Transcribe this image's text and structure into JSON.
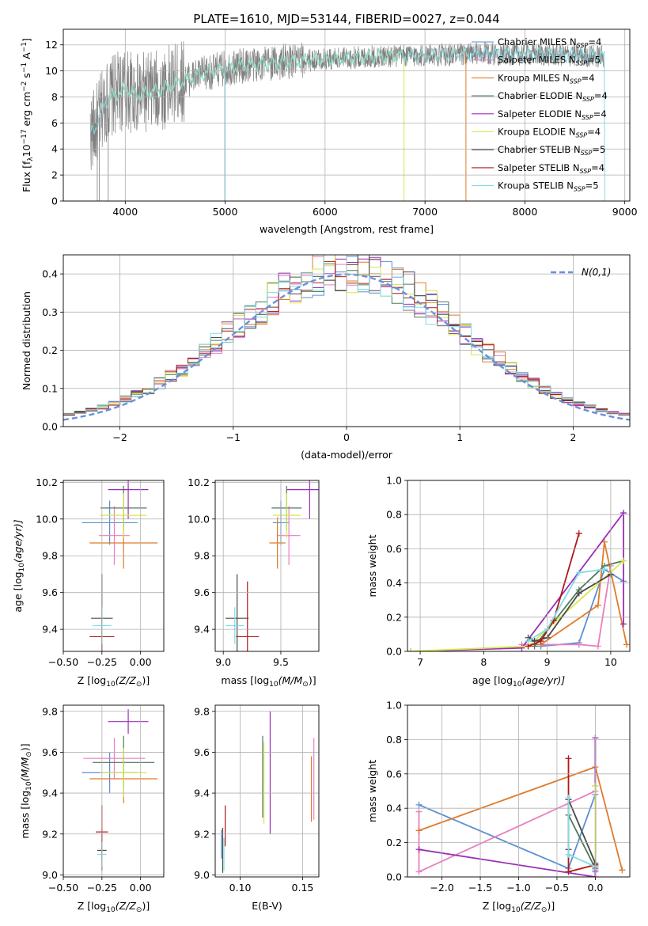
{
  "title": "PLATE=1610, MJD=53144, FIBERID=0027, z=0.044",
  "colors": {
    "Chabrier MILES": "#5b8fd4",
    "Salpeter MILES": "#e97fc0",
    "Kroupa MILES": "#e07b2a",
    "Chabrier ELODIE": "#4c7a5b",
    "Salpeter ELODIE": "#9b2fb5",
    "Kroupa ELODIE": "#d6e84a",
    "Chabrier STELIB": "#4a4a4a",
    "Salpeter STELIB": "#b01818",
    "Kroupa STELIB": "#7fdde6",
    "spectrum": "#808080",
    "normal_curve": "#6a8fdc"
  },
  "chart_data": [
    {
      "id": "spectrum",
      "type": "line",
      "xlabel": "wavelength [Angstrom, rest frame]",
      "ylabel_prefix": "Flux [f",
      "ylabel_rest": "10",
      "ylabel_units": " erg cm",
      "xlim": [
        3380,
        9050
      ],
      "ylim": [
        0,
        13.2
      ],
      "xticks": [
        4000,
        5000,
        6000,
        7000,
        8000,
        9000
      ],
      "yticks": [
        0,
        2,
        4,
        6,
        8,
        10,
        12
      ],
      "legend": [
        {
          "model": "Chabrier MILES",
          "n": "4"
        },
        {
          "model": "Salpeter MILES",
          "n": "5"
        },
        {
          "model": "Kroupa MILES",
          "n": "4"
        },
        {
          "model": "Chabrier ELODIE",
          "n": "4"
        },
        {
          "model": "Salpeter ELODIE",
          "n": "4"
        },
        {
          "model": "Kroupa ELODIE",
          "n": "4"
        },
        {
          "model": "Chabrier STELIB",
          "n": "5"
        },
        {
          "model": "Salpeter STELIB",
          "n": "4"
        },
        {
          "model": "Kroupa STELIB",
          "n": "5"
        }
      ],
      "data_range": [
        3650,
        8800
      ],
      "continuum": [
        [
          3650,
          5.2
        ],
        [
          3700,
          5.6
        ],
        [
          3800,
          7.6
        ],
        [
          3900,
          8.2
        ],
        [
          4000,
          8.6
        ],
        [
          4100,
          8.2
        ],
        [
          4300,
          8.4
        ],
        [
          4500,
          9.0
        ],
        [
          4700,
          9.6
        ],
        [
          5000,
          10.2
        ],
        [
          5300,
          10.5
        ],
        [
          5600,
          10.7
        ],
        [
          6000,
          10.9
        ],
        [
          6500,
          11.1
        ],
        [
          7000,
          11.2
        ],
        [
          7500,
          11.3
        ],
        [
          8000,
          11.3
        ],
        [
          8500,
          11.2
        ],
        [
          8800,
          11.1
        ]
      ],
      "model_cutoffs": [
        {
          "model": "Kroupa MILES",
          "start": 3650,
          "end": 7410
        },
        {
          "model": "Kroupa ELODIE",
          "start": 3830,
          "end": 6790
        },
        {
          "model": "Kroupa STELIB",
          "start": 3650,
          "end": 8800
        }
      ]
    },
    {
      "id": "residuals",
      "type": "step-histogram",
      "xlabel": "(data-model)/error",
      "ylabel": "Normed distribution",
      "xlim": [
        -2.5,
        2.5
      ],
      "ylim": [
        0,
        0.45
      ],
      "xticks": [
        -2,
        -1,
        0,
        1,
        2
      ],
      "yticks": [
        0.0,
        0.1,
        0.2,
        0.3,
        0.4
      ],
      "legend_label": "N(0,1)",
      "bin_width": 0.1
    },
    {
      "id": "age-vs-Z",
      "type": "errorbar",
      "xlabel_prefix": "Z [log",
      "xlabel_mid": "(Z/Z",
      "xlabel_end": ")]",
      "ylabel_prefix": "age  [log",
      "ylabel_end": "(age/yr)]",
      "xlim": [
        -0.5,
        0.15
      ],
      "ylim": [
        9.28,
        10.21
      ],
      "xticks": [
        -0.5,
        -0.25,
        0.0
      ],
      "yticks": [
        9.4,
        9.6,
        9.8,
        10.0,
        10.2
      ],
      "points": [
        {
          "model": "Chabrier MILES",
          "x": -0.2,
          "xerr": 0.18,
          "y": 9.98,
          "yerr": 0.12
        },
        {
          "model": "Salpeter MILES",
          "x": -0.17,
          "xerr": 0.1,
          "y": 9.91,
          "yerr": 0.16
        },
        {
          "model": "Kroupa MILES",
          "x": -0.11,
          "xerr": 0.22,
          "y": 9.87,
          "yerr": 0.14
        },
        {
          "model": "Chabrier ELODIE",
          "x": -0.11,
          "xerr": 0.15,
          "y": 10.06,
          "yerr": 0.12
        },
        {
          "model": "Salpeter ELODIE",
          "x": -0.08,
          "xerr": 0.13,
          "y": 10.16,
          "yerr": 0.16
        },
        {
          "model": "Kroupa ELODIE",
          "x": -0.11,
          "xerr": 0.15,
          "y": 10.02,
          "yerr": 0.12
        },
        {
          "model": "Chabrier STELIB",
          "x": -0.25,
          "xerr": 0.07,
          "y": 9.46,
          "yerr": 0.24
        },
        {
          "model": "Salpeter STELIB",
          "x": -0.25,
          "xerr": 0.08,
          "y": 9.36,
          "yerr": 0.1
        },
        {
          "model": "Kroupa STELIB",
          "x": -0.25,
          "xerr": 0.06,
          "y": 9.42,
          "yerr": 0.1
        }
      ]
    },
    {
      "id": "age-vs-mass",
      "type": "errorbar",
      "xlabel_prefix": "mass [log",
      "xlabel_mid": "(M/M",
      "xlabel_end": ")]",
      "xlim": [
        8.93,
        9.83
      ],
      "ylim": [
        9.28,
        10.21
      ],
      "xticks": [
        9.0,
        9.5
      ],
      "yticks": [
        9.4,
        9.6,
        9.8,
        10.0,
        10.2
      ],
      "points": [
        {
          "model": "Chabrier MILES",
          "x": 9.5,
          "xerr": 0.07,
          "y": 9.98,
          "yerr": 0.12
        },
        {
          "model": "Salpeter MILES",
          "x": 9.57,
          "xerr": 0.1,
          "y": 9.91,
          "yerr": 0.16
        },
        {
          "model": "Kroupa MILES",
          "x": 9.47,
          "xerr": 0.07,
          "y": 9.87,
          "yerr": 0.14
        },
        {
          "model": "Chabrier ELODIE",
          "x": 9.55,
          "xerr": 0.13,
          "y": 10.06,
          "yerr": 0.12
        },
        {
          "model": "Salpeter ELODIE",
          "x": 9.75,
          "xerr": 0.2,
          "y": 10.16,
          "yerr": 0.16
        },
        {
          "model": "Kroupa ELODIE",
          "x": 9.55,
          "xerr": 0.12,
          "y": 10.02,
          "yerr": 0.12
        },
        {
          "model": "Chabrier STELIB",
          "x": 9.12,
          "xerr": 0.1,
          "y": 9.46,
          "yerr": 0.24
        },
        {
          "model": "Salpeter STELIB",
          "x": 9.21,
          "xerr": 0.1,
          "y": 9.36,
          "yerr": 0.3
        },
        {
          "model": "Kroupa STELIB",
          "x": 9.1,
          "xerr": 0.08,
          "y": 9.42,
          "yerr": 0.1
        }
      ]
    },
    {
      "id": "weight-vs-age",
      "type": "line",
      "xlabel_prefix": "age  [log",
      "xlabel_end": "(age/yr)]",
      "ylabel": "mass weight",
      "xlim": [
        6.8,
        10.3
      ],
      "ylim": [
        0,
        1
      ],
      "xticks": [
        7,
        8,
        9,
        10
      ],
      "yticks": [
        0.0,
        0.2,
        0.4,
        0.6,
        0.8,
        1.0
      ],
      "series": [
        {
          "model": "Chabrier MILES",
          "x": [
            8.9,
            9.5,
            9.9,
            10.2
          ],
          "y": [
            0.03,
            0.05,
            0.48,
            0.41
          ]
        },
        {
          "model": "Salpeter MILES",
          "x": [
            8.6,
            9.5,
            9.8,
            10.0
          ],
          "y": [
            0.04,
            0.04,
            0.03,
            0.5
          ]
        },
        {
          "model": "Kroupa MILES",
          "x": [
            8.9,
            9.8,
            9.9,
            10.25
          ],
          "y": [
            0.04,
            0.27,
            0.64,
            0.04
          ]
        },
        {
          "model": "Chabrier ELODIE",
          "x": [
            8.8,
            9.5,
            9.9,
            10.2
          ],
          "y": [
            0.03,
            0.36,
            0.5,
            0.53
          ]
        },
        {
          "model": "Salpeter ELODIE",
          "x": [
            6.85,
            8.6,
            10.2,
            10.2
          ],
          "y": [
            0.0,
            0.02,
            0.81,
            0.16
          ]
        },
        {
          "model": "Kroupa ELODIE",
          "x": [
            6.85,
            8.7,
            10.2
          ],
          "y": [
            0.0,
            0.03,
            0.53
          ]
        },
        {
          "model": "Chabrier STELIB",
          "x": [
            8.7,
            8.8,
            9.0,
            9.5,
            10.0
          ],
          "y": [
            0.08,
            0.06,
            0.08,
            0.34,
            0.45
          ]
        },
        {
          "model": "Salpeter STELIB",
          "x": [
            8.7,
            8.9,
            9.1,
            9.5
          ],
          "y": [
            0.03,
            0.06,
            0.18,
            0.69
          ]
        },
        {
          "model": "Kroupa STELIB",
          "x": [
            8.7,
            9.0,
            9.5,
            9.9
          ],
          "y": [
            0.06,
            0.13,
            0.46,
            0.48
          ]
        }
      ]
    },
    {
      "id": "mass-vs-Z",
      "type": "errorbar",
      "xlabel_prefix": "Z [log",
      "xlabel_mid": "(Z/Z",
      "xlabel_end": ")]",
      "ylabel_prefix": "mass [log",
      "ylabel_mid": "(M/M",
      "ylabel_end": ")]",
      "xlim": [
        -0.5,
        0.15
      ],
      "ylim": [
        8.99,
        9.83
      ],
      "xticks": [
        -0.5,
        -0.25,
        0.0
      ],
      "yticks": [
        9.0,
        9.2,
        9.4,
        9.6,
        9.8
      ],
      "points": [
        {
          "model": "Chabrier MILES",
          "x": -0.2,
          "xerr": 0.18,
          "y": 9.5,
          "yerr": 0.1
        },
        {
          "model": "Salpeter MILES",
          "x": -0.17,
          "xerr": 0.2,
          "y": 9.57,
          "yerr": 0.1
        },
        {
          "model": "Kroupa MILES",
          "x": -0.11,
          "xerr": 0.22,
          "y": 9.47,
          "yerr": 0.12
        },
        {
          "model": "Chabrier ELODIE",
          "x": -0.11,
          "xerr": 0.2,
          "y": 9.55,
          "yerr": 0.13
        },
        {
          "model": "Salpeter ELODIE",
          "x": -0.08,
          "xerr": 0.13,
          "y": 9.75,
          "yerr": 0.06
        },
        {
          "model": "Kroupa ELODIE",
          "x": -0.11,
          "xerr": 0.15,
          "y": 9.5,
          "yerr": 0.12
        },
        {
          "model": "Chabrier STELIB",
          "x": -0.25,
          "xerr": 0.03,
          "y": 9.12,
          "yerr": 0.1
        },
        {
          "model": "Salpeter STELIB",
          "x": -0.25,
          "xerr": 0.04,
          "y": 9.21,
          "yerr": 0.13
        },
        {
          "model": "Kroupa STELIB",
          "x": -0.25,
          "xerr": 0.03,
          "y": 9.1,
          "yerr": 0.06
        }
      ]
    },
    {
      "id": "mass-vs-ebv",
      "type": "errorbar",
      "xlabel": "E(B-V)",
      "xlim": [
        0.08,
        0.163
      ],
      "ylim": [
        8.99,
        9.83
      ],
      "xticks": [
        0.1,
        0.15
      ],
      "yticks": [
        9.0,
        9.2,
        9.4,
        9.6,
        9.8
      ],
      "points": [
        {
          "model": "Chabrier MILES",
          "x": 0.085,
          "xerr": 0,
          "y": 9.15,
          "yerr": 0.07
        },
        {
          "model": "Salpeter MILES",
          "x": 0.159,
          "xerr": 0,
          "y": 9.47,
          "yerr": 0.2
        },
        {
          "model": "Kroupa MILES",
          "x": 0.157,
          "xerr": 0,
          "y": 9.42,
          "yerr": 0.16
        },
        {
          "model": "Chabrier ELODIE",
          "x": 0.118,
          "xerr": 0,
          "y": 9.48,
          "yerr": 0.2
        },
        {
          "model": "Salpeter ELODIE",
          "x": 0.124,
          "xerr": 0,
          "y": 9.5,
          "yerr": 0.3
        },
        {
          "model": "Kroupa ELODIE",
          "x": 0.119,
          "xerr": 0,
          "y": 9.45,
          "yerr": 0.2
        },
        {
          "model": "Chabrier STELIB",
          "x": 0.086,
          "xerr": 0,
          "y": 9.12,
          "yerr": 0.11
        },
        {
          "model": "Salpeter STELIB",
          "x": 0.088,
          "xerr": 0,
          "y": 9.24,
          "yerr": 0.1
        },
        {
          "model": "Kroupa STELIB",
          "x": 0.087,
          "xerr": 0,
          "y": 9.1,
          "yerr": 0.08
        }
      ]
    },
    {
      "id": "weight-vs-Z",
      "type": "line",
      "xlabel_prefix": "Z [log",
      "xlabel_mid": "(Z/Z",
      "xlabel_end": ")]",
      "ylabel": "mass weight",
      "xlim": [
        -2.45,
        0.45
      ],
      "ylim": [
        0,
        1
      ],
      "xticks": [
        -2.0,
        -1.5,
        -1.0,
        -0.5,
        0.0
      ],
      "yticks": [
        0.0,
        0.2,
        0.4,
        0.6,
        0.8,
        1.0
      ],
      "series": [
        {
          "model": "Chabrier MILES",
          "x": [
            -2.3,
            -0.35,
            0.0,
            0.0
          ],
          "y": [
            0.42,
            0.05,
            0.48,
            0.03
          ]
        },
        {
          "model": "Salpeter MILES",
          "x": [
            -2.3,
            -2.3,
            0.0,
            0.0
          ],
          "y": [
            0.38,
            0.03,
            0.5,
            0.04
          ]
        },
        {
          "model": "Kroupa MILES",
          "x": [
            -2.3,
            0.0,
            0.35
          ],
          "y": [
            0.27,
            0.64,
            0.04
          ]
        },
        {
          "model": "Chabrier ELODIE",
          "x": [
            -0.35,
            0.0,
            0.0
          ],
          "y": [
            0.36,
            0.05,
            0.53
          ]
        },
        {
          "model": "Salpeter ELODIE",
          "x": [
            -2.3,
            0.0,
            0.0
          ],
          "y": [
            0.16,
            0.0,
            0.81
          ]
        },
        {
          "model": "Kroupa ELODIE",
          "x": [
            -0.35,
            0.0,
            0.0
          ],
          "y": [
            0.03,
            0.07,
            0.53
          ]
        },
        {
          "model": "Chabrier STELIB",
          "x": [
            -0.35,
            -0.35,
            0.0,
            0.0
          ],
          "y": [
            0.16,
            0.45,
            0.08,
            0.06
          ]
        },
        {
          "model": "Salpeter STELIB",
          "x": [
            -0.35,
            -0.35,
            0.0
          ],
          "y": [
            0.69,
            0.03,
            0.07
          ]
        },
        {
          "model": "Kroupa STELIB",
          "x": [
            -0.35,
            -0.35,
            0.0
          ],
          "y": [
            0.46,
            0.13,
            0.06
          ]
        }
      ]
    }
  ]
}
